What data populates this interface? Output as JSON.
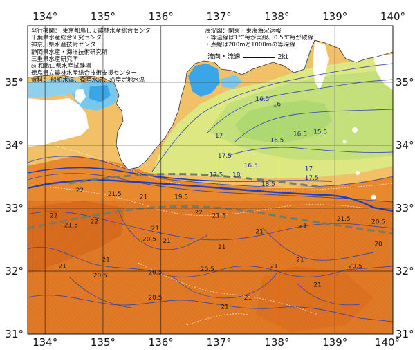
{
  "map": {
    "lon_ticks_top": [
      "134°",
      "135°",
      "136°",
      "137°",
      "138°",
      "139°",
      "140°"
    ],
    "lon_ticks_bottom": [
      "134°",
      "135°",
      "136°",
      "137°",
      "138°",
      "139°",
      "140°"
    ],
    "lat_ticks_left": [
      "35°",
      "34°",
      "33°",
      "32°",
      "31°"
    ],
    "lat_ticks_right": [
      "35°",
      "34°",
      "33°",
      "32°",
      "31°"
    ],
    "extent": {
      "lon": [
        133.7,
        140.0
      ],
      "lat": [
        31.0,
        35.9
      ]
    },
    "grid": true,
    "colors": {
      "cold_cyan": "#3aa6e8",
      "cool_blue": "#78c8ee",
      "light_green": "#c4e07a",
      "yellow_green": "#dde882",
      "light_orange": "#f1c067",
      "orange": "#e98a2c",
      "deep_orange": "#d4671c",
      "land": "#ffffff",
      "kuroshio_line": "#1d3fc2",
      "isotherm_line": "#2d3fb8",
      "dashed_line": "#6f7d6a"
    }
  },
  "notes_left": [
    "発行機関：  東京都島しょ農林水産総合センター",
    "       千葉県水産総合研究センター",
    "       神奈川県水産技術センター",
    "       静岡県水産・海洋技術研究所",
    "       三重県水産研究所",
    "    ◎ 和歌山県水産試験場",
    "       徳島県立農林水産総合技術支援センター",
    "資料：  船舶水温、衛星水温、沿岸定地水温"
  ],
  "notes_right": [
    "海況図：関東・東海海況速報",
    "・等温線は1℃毎が実線、0.5℃毎が破線",
    "・点線は200mと1000mの等深線"
  ],
  "legend": {
    "label": "流向・流速",
    "unit": "2kt"
  },
  "contour_labels": [
    {
      "text": "16.5",
      "lon": 137.75,
      "lat": 34.7
    },
    {
      "text": "16",
      "lon": 138.0,
      "lat": 34.62
    },
    {
      "text": "16.5",
      "lon": 138.4,
      "lat": 34.15
    },
    {
      "text": "15.5",
      "lon": 138.75,
      "lat": 34.18
    },
    {
      "text": "17",
      "lon": 137.0,
      "lat": 34.12
    },
    {
      "text": "16.5",
      "lon": 138.0,
      "lat": 34.05
    },
    {
      "text": "17.5",
      "lon": 137.1,
      "lat": 33.8
    },
    {
      "text": "17.5",
      "lon": 136.95,
      "lat": 33.5
    },
    {
      "text": "18",
      "lon": 137.3,
      "lat": 33.5
    },
    {
      "text": "16.5",
      "lon": 137.55,
      "lat": 33.65
    },
    {
      "text": "18.5",
      "lon": 137.85,
      "lat": 33.35
    },
    {
      "text": "17.5",
      "lon": 138.6,
      "lat": 33.45
    },
    {
      "text": "17",
      "lon": 138.55,
      "lat": 33.6
    },
    {
      "text": "19.5",
      "lon": 136.35,
      "lat": 33.15
    },
    {
      "text": "21",
      "lon": 135.7,
      "lat": 33.15
    },
    {
      "text": "21.5",
      "lon": 135.2,
      "lat": 33.2
    },
    {
      "text": "22",
      "lon": 134.6,
      "lat": 33.25
    },
    {
      "text": "22",
      "lon": 136.65,
      "lat": 32.9
    },
    {
      "text": "21.5",
      "lon": 137.0,
      "lat": 32.85
    },
    {
      "text": "22",
      "lon": 134.15,
      "lat": 32.85
    },
    {
      "text": "21.5",
      "lon": 134.45,
      "lat": 32.7
    },
    {
      "text": "22",
      "lon": 134.85,
      "lat": 32.75
    },
    {
      "text": "21",
      "lon": 135.9,
      "lat": 32.65
    },
    {
      "text": "20.5",
      "lon": 135.8,
      "lat": 32.48
    },
    {
      "text": "21",
      "lon": 136.1,
      "lat": 32.45
    },
    {
      "text": "21",
      "lon": 137.05,
      "lat": 32.35
    },
    {
      "text": "21",
      "lon": 137.7,
      "lat": 32.6
    },
    {
      "text": "21",
      "lon": 138.45,
      "lat": 32.7
    },
    {
      "text": "21.5",
      "lon": 139.15,
      "lat": 32.8
    },
    {
      "text": "20.5",
      "lon": 139.75,
      "lat": 32.75
    },
    {
      "text": "20",
      "lon": 139.75,
      "lat": 32.4
    },
    {
      "text": "21",
      "lon": 138.4,
      "lat": 32.15
    },
    {
      "text": "21",
      "lon": 137.95,
      "lat": 32.05
    },
    {
      "text": "21",
      "lon": 135.05,
      "lat": 32.15
    },
    {
      "text": "20.5",
      "lon": 134.95,
      "lat": 31.9
    },
    {
      "text": "21",
      "lon": 134.3,
      "lat": 32.05
    },
    {
      "text": "20.5",
      "lon": 135.9,
      "lat": 31.95
    },
    {
      "text": "20.5",
      "lon": 136.8,
      "lat": 32.0
    },
    {
      "text": "21",
      "lon": 138.7,
      "lat": 31.75
    },
    {
      "text": "20.5",
      "lon": 135.9,
      "lat": 31.55
    },
    {
      "text": "21",
      "lon": 137.1,
      "lat": 31.4
    },
    {
      "text": "21",
      "lon": 137.5,
      "lat": 31.55
    },
    {
      "text": "20.5",
      "lon": 139.35,
      "lat": 32.05
    }
  ]
}
